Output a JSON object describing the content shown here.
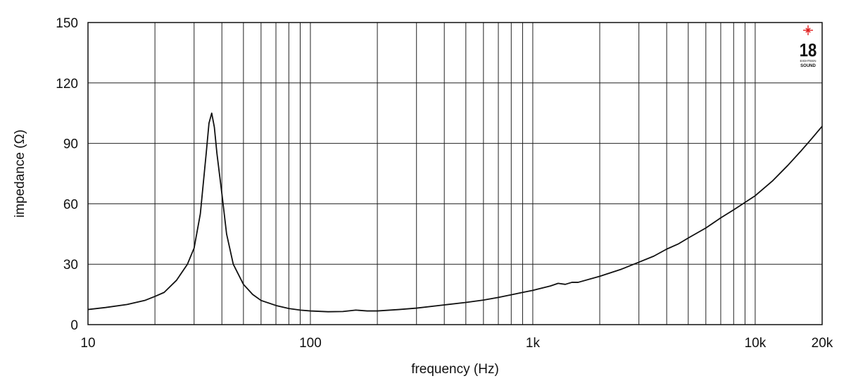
{
  "chart_data": {
    "type": "line",
    "xlabel": "frequency (Hz)",
    "ylabel": "impedance (Ω)",
    "x_scale": "log",
    "xlim": [
      10,
      20000
    ],
    "ylim": [
      0,
      150
    ],
    "grid": true,
    "x_ticks": [
      {
        "value": 10,
        "label": "10"
      },
      {
        "value": 100,
        "label": "100"
      },
      {
        "value": 1000,
        "label": "1k"
      },
      {
        "value": 10000,
        "label": "10k"
      },
      {
        "value": 20000,
        "label": "20k"
      }
    ],
    "y_ticks": [
      {
        "value": 0,
        "label": "0"
      },
      {
        "value": 30,
        "label": "30"
      },
      {
        "value": 60,
        "label": "60"
      },
      {
        "value": 90,
        "label": "90"
      },
      {
        "value": 120,
        "label": "120"
      },
      {
        "value": 150,
        "label": "150"
      }
    ],
    "series": [
      {
        "color": "#111111",
        "x": [
          10,
          12,
          15,
          18,
          20,
          22,
          25,
          28,
          30,
          32,
          34,
          35,
          36,
          37,
          38,
          40,
          42,
          45,
          50,
          55,
          60,
          70,
          80,
          90,
          100,
          120,
          140,
          160,
          180,
          200,
          250,
          300,
          400,
          500,
          600,
          700,
          800,
          900,
          1000,
          1200,
          1300,
          1400,
          1500,
          1600,
          2000,
          2500,
          3000,
          3500,
          4000,
          4500,
          5000,
          6000,
          7000,
          8000,
          10000,
          12000,
          14000,
          16000,
          18000,
          20000
        ],
        "y": [
          7.5,
          8.5,
          10,
          12,
          14,
          16,
          22,
          30,
          38,
          55,
          85,
          100,
          105,
          98,
          85,
          65,
          45,
          30,
          20,
          15,
          12,
          9.5,
          8,
          7.2,
          6.8,
          6.4,
          6.5,
          7.2,
          6.8,
          6.8,
          7.5,
          8.2,
          9.8,
          11,
          12.2,
          13.5,
          14.8,
          16,
          17,
          19.2,
          20.5,
          20,
          21,
          21,
          24,
          27.5,
          31,
          34,
          37.5,
          40,
          43,
          48,
          53,
          57,
          64,
          71.5,
          79,
          86,
          92.5,
          98.5
        ]
      }
    ],
    "logo": {
      "text_main": "18",
      "text_sub1": "EIGHTEEN",
      "text_sub2": "SOUND",
      "accent_color": "#e02020"
    }
  }
}
